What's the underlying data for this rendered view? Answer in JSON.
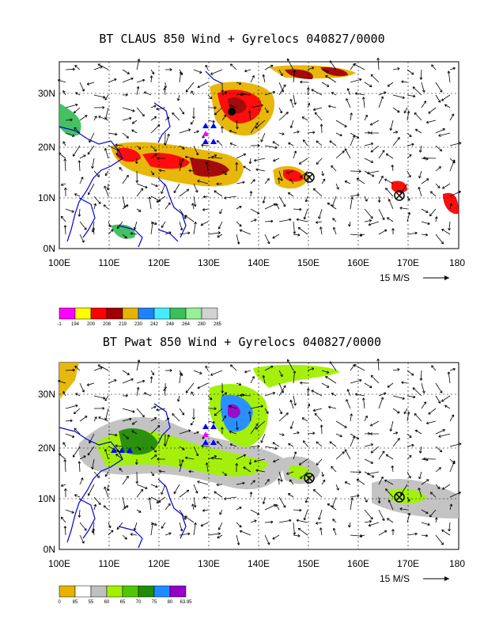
{
  "top": {
    "title": "BT CLAUS 850 Wind + Gyrelocs 040827/0000",
    "xlabels": [
      "100E",
      "110E",
      "120E",
      "130E",
      "140E",
      "150E",
      "160E",
      "170E",
      "180"
    ],
    "ylabels": [
      "30N",
      "20N",
      "10N",
      "0N"
    ],
    "scale_label": "15 M/S",
    "colorbar": {
      "colors": [
        "#ff00ff",
        "#ffff00",
        "#ff0000",
        "#a00000",
        "#e6b400",
        "#1e82ff",
        "#46ebff",
        "#3cbe5a",
        "#96f096",
        "#d2d2d2"
      ],
      "labels": [
        "-1",
        "194",
        "200",
        "208",
        "219",
        "230",
        "242",
        "248",
        "264",
        "280",
        "285"
      ]
    }
  },
  "bottom": {
    "title": "BT Pwat 850 Wind + Gyrelocs 040827/0000",
    "xlabels": [
      "100E",
      "110E",
      "120E",
      "130E",
      "140E",
      "150E",
      "160E",
      "170E",
      "180"
    ],
    "ylabels": [
      "30N",
      "20N",
      "10N",
      "0N"
    ],
    "scale_label": "15 M/S",
    "colorbar": {
      "colors": [
        "#e6b400",
        "#ffffff",
        "#c0c0c0",
        "#a0f000",
        "#50c800",
        "#208c00",
        "#1e8cff",
        "#9600c8"
      ],
      "labels": [
        "0",
        "85",
        "55",
        "60",
        "65",
        "70",
        "75",
        "80",
        "63.95"
      ]
    }
  }
}
